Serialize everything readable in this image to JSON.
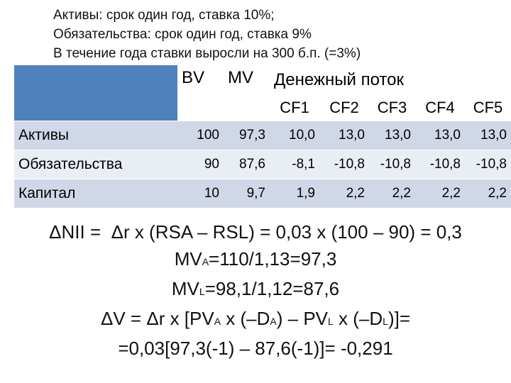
{
  "header": {
    "lines": [
      "Активы: срок один год, ставка 10%;",
      "Обязательства: срок один год,  ставка 9%",
      "В течение года ставки выросли на 300 б.п. (=3%)"
    ]
  },
  "table": {
    "header": [
      "BV",
      "MV",
      "Денежный поток"
    ],
    "subheader": [
      "CF1",
      "CF2",
      "CF3",
      "CF4",
      "CF5"
    ],
    "rows": [
      {
        "label": "Активы",
        "cells": [
          "100",
          "97,3",
          "10,0",
          "13,0",
          "13,0",
          "13,0",
          "13,0"
        ]
      },
      {
        "label": "Обязательства",
        "cells": [
          "90",
          "87,6",
          "-8,1",
          "-10,8",
          "-10,8",
          "-10,8",
          "-10,8"
        ]
      },
      {
        "label": "Капитал",
        "cells": [
          "10",
          "9,7",
          "1,9",
          "2,2",
          "2,2",
          "2,2",
          "2,2"
        ]
      }
    ]
  },
  "formulas": [
    [
      "ΔNII =  Δr x (RSA – RSL) = 0,03 x (100 – 90) = 0,3"
    ],
    [
      "MV",
      "A",
      "=110/1,13=97,3"
    ],
    [
      "MV",
      "L",
      "=98,1/1,12=87,6"
    ],
    [
      "ΔV = Δr x [PV",
      "A",
      " x (–D",
      "A",
      ") – PV",
      "L",
      " x (–D",
      "L",
      ")]="
    ],
    [
      "=0,03[97,3(-1) – 87,6(-1)]= -0,291"
    ]
  ]
}
